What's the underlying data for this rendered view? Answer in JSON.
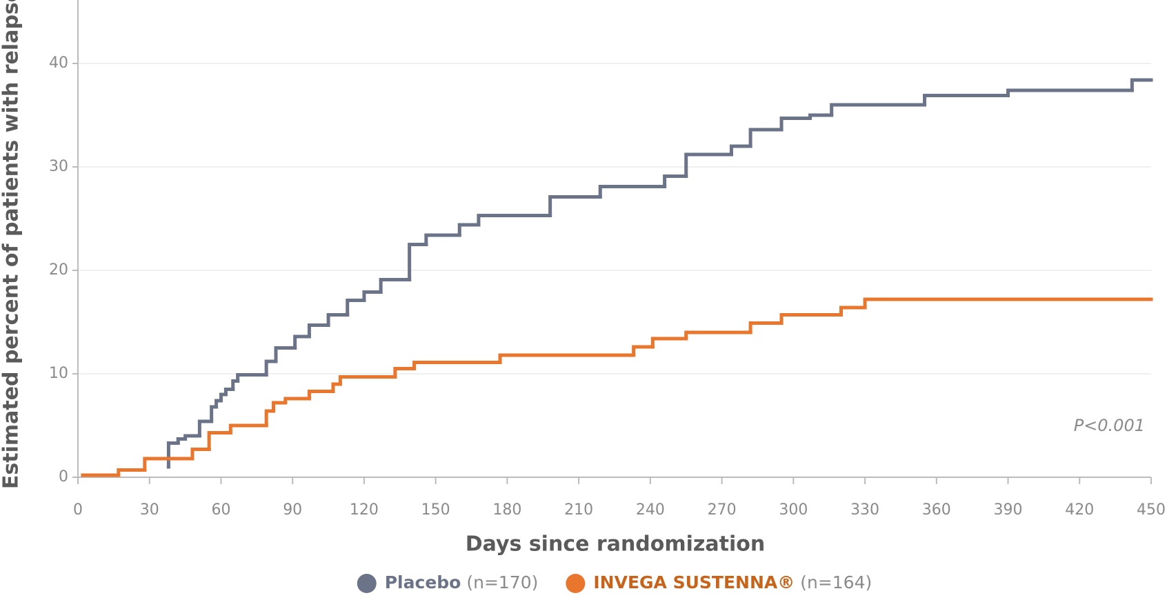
{
  "chart_data": {
    "type": "step",
    "xlabel": "Days since randomization",
    "ylabel": "Estimated percent of patients with relapse",
    "annotation": "P<0.001",
    "xlim": [
      0,
      450
    ],
    "ylim": [
      0,
      46
    ],
    "xticks": [
      0,
      30,
      60,
      90,
      120,
      150,
      180,
      210,
      240,
      270,
      300,
      330,
      360,
      390,
      420,
      450
    ],
    "yticks": [
      0,
      10,
      20,
      30,
      40
    ],
    "grid": true,
    "legend": "bottom",
    "series": [
      {
        "name": "Placebo",
        "note": "(n=170)",
        "color": "#6b7389",
        "x": [
          38,
          38,
          42,
          45,
          51,
          56,
          58,
          60,
          62,
          65,
          67,
          79,
          83,
          91,
          97,
          105,
          113,
          120,
          127,
          139,
          146,
          160,
          168,
          198,
          219,
          246,
          255,
          274,
          282,
          295,
          307,
          316,
          355,
          390,
          442,
          450
        ],
        "values": [
          1.0,
          3.3,
          3.7,
          4.0,
          5.4,
          6.8,
          7.4,
          8.0,
          8.5,
          9.3,
          9.9,
          11.2,
          12.5,
          13.6,
          14.7,
          15.7,
          17.1,
          17.9,
          19.1,
          22.5,
          23.4,
          24.4,
          25.3,
          27.1,
          28.1,
          29.1,
          31.2,
          32.0,
          33.6,
          34.7,
          35.0,
          36.0,
          36.9,
          37.4,
          38.4,
          38.4
        ]
      },
      {
        "name": "INVEGA SUSTENNA®",
        "note": "(n=164)",
        "color": "#e8762c",
        "x": [
          2,
          17,
          28,
          48,
          55,
          64,
          79,
          82,
          87,
          97,
          107,
          110,
          133,
          141,
          177,
          233,
          241,
          255,
          282,
          295,
          320,
          330,
          450
        ],
        "values": [
          0.2,
          0.7,
          1.8,
          2.7,
          4.3,
          5.0,
          6.4,
          7.2,
          7.6,
          8.3,
          9.0,
          9.7,
          10.5,
          11.1,
          11.8,
          12.6,
          13.4,
          14.0,
          14.9,
          15.7,
          16.4,
          17.2,
          17.2
        ]
      }
    ]
  }
}
